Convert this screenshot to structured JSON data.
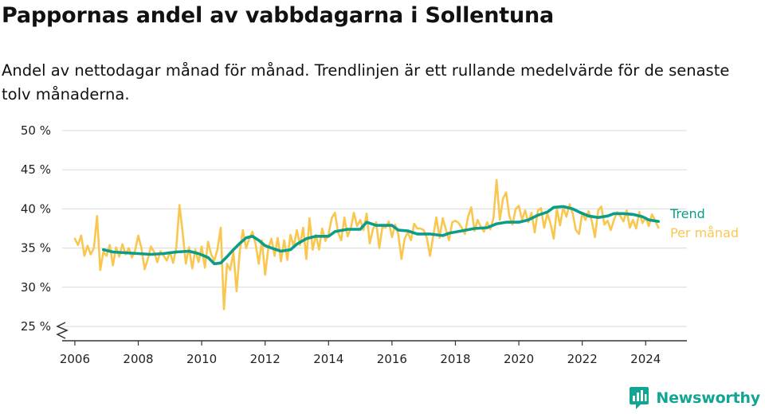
{
  "header": {
    "title": "Pappornas andel av vabbdagarna i Sollentuna",
    "subtitle": "Andel av nettodagar månad för månad. Trendlinjen är ett rullande medelvärde för de senaste tolv månaderna."
  },
  "brand": {
    "name": "Newsworthy",
    "icon": "newsworthy-logo-icon",
    "color": "#12a594"
  },
  "chart_data": {
    "type": "line",
    "title": "Pappornas andel av vabbdagarna i Sollentuna",
    "xlabel": "",
    "ylabel": "",
    "xlim": [
      2005.6,
      2025.3
    ],
    "ylim": [
      25,
      50
    ],
    "y_ticks": [
      25,
      30,
      35,
      40,
      45,
      50
    ],
    "y_tick_labels": [
      "25 %",
      "30 %",
      "35 %",
      "40 %",
      "45 %",
      "50 %"
    ],
    "x_ticks": [
      2006,
      2008,
      2010,
      2012,
      2014,
      2016,
      2018,
      2020,
      2022,
      2024
    ],
    "x_tick_labels": [
      "2006",
      "2008",
      "2010",
      "2012",
      "2014",
      "2016",
      "2018",
      "2020",
      "2022",
      "2024"
    ],
    "y_axis_break": true,
    "grid": "horizontal",
    "legend": "right, inline labels at line ends",
    "series": [
      {
        "name": "Trend",
        "color": "#0c9c8a",
        "points": [
          [
            2006.9,
            34.8
          ],
          [
            2007.2,
            34.5
          ],
          [
            2007.6,
            34.4
          ],
          [
            2008.0,
            34.3
          ],
          [
            2008.4,
            34.2
          ],
          [
            2008.8,
            34.3
          ],
          [
            2009.2,
            34.5
          ],
          [
            2009.6,
            34.6
          ],
          [
            2009.9,
            34.3
          ],
          [
            2010.2,
            33.8
          ],
          [
            2010.4,
            33.0
          ],
          [
            2010.6,
            33.1
          ],
          [
            2010.8,
            33.9
          ],
          [
            2011.0,
            34.8
          ],
          [
            2011.2,
            35.6
          ],
          [
            2011.4,
            36.3
          ],
          [
            2011.6,
            36.5
          ],
          [
            2011.8,
            36.0
          ],
          [
            2012.0,
            35.3
          ],
          [
            2012.2,
            35.0
          ],
          [
            2012.5,
            34.6
          ],
          [
            2012.8,
            34.8
          ],
          [
            2013.0,
            35.5
          ],
          [
            2013.3,
            36.2
          ],
          [
            2013.6,
            36.5
          ],
          [
            2014.0,
            36.5
          ],
          [
            2014.2,
            37.1
          ],
          [
            2014.6,
            37.4
          ],
          [
            2015.0,
            37.4
          ],
          [
            2015.2,
            38.3
          ],
          [
            2015.5,
            37.9
          ],
          [
            2016.0,
            37.9
          ],
          [
            2016.2,
            37.3
          ],
          [
            2016.5,
            37.2
          ],
          [
            2016.8,
            36.8
          ],
          [
            2017.2,
            36.8
          ],
          [
            2017.6,
            36.6
          ],
          [
            2017.8,
            36.9
          ],
          [
            2018.2,
            37.2
          ],
          [
            2018.6,
            37.5
          ],
          [
            2019.0,
            37.6
          ],
          [
            2019.3,
            38.1
          ],
          [
            2019.6,
            38.3
          ],
          [
            2020.0,
            38.3
          ],
          [
            2020.3,
            38.6
          ],
          [
            2020.6,
            39.2
          ],
          [
            2020.9,
            39.6
          ],
          [
            2021.1,
            40.2
          ],
          [
            2021.4,
            40.3
          ],
          [
            2021.7,
            40.0
          ],
          [
            2021.9,
            39.6
          ],
          [
            2022.2,
            39.1
          ],
          [
            2022.5,
            38.9
          ],
          [
            2022.8,
            39.1
          ],
          [
            2023.0,
            39.4
          ],
          [
            2023.3,
            39.4
          ],
          [
            2023.6,
            39.3
          ],
          [
            2023.9,
            39.0
          ],
          [
            2024.1,
            38.6
          ],
          [
            2024.4,
            38.4
          ]
        ]
      },
      {
        "name": "Per månad",
        "color": "#f9c74f",
        "points": [
          [
            2006.0,
            36.2
          ],
          [
            2006.1,
            35.4
          ],
          [
            2006.2,
            36.6
          ],
          [
            2006.3,
            34.0
          ],
          [
            2006.4,
            35.3
          ],
          [
            2006.5,
            34.2
          ],
          [
            2006.6,
            35.0
          ],
          [
            2006.7,
            39.1
          ],
          [
            2006.8,
            32.2
          ],
          [
            2006.9,
            34.5
          ],
          [
            2007.0,
            34.0
          ],
          [
            2007.1,
            35.4
          ],
          [
            2007.2,
            32.8
          ],
          [
            2007.3,
            35.1
          ],
          [
            2007.4,
            33.9
          ],
          [
            2007.5,
            35.5
          ],
          [
            2007.6,
            34.2
          ],
          [
            2007.7,
            35.0
          ],
          [
            2007.8,
            33.8
          ],
          [
            2007.9,
            34.7
          ],
          [
            2008.0,
            36.6
          ],
          [
            2008.1,
            35.0
          ],
          [
            2008.2,
            32.3
          ],
          [
            2008.3,
            33.6
          ],
          [
            2008.4,
            35.2
          ],
          [
            2008.5,
            34.5
          ],
          [
            2008.6,
            33.2
          ],
          [
            2008.7,
            34.6
          ],
          [
            2008.8,
            34.0
          ],
          [
            2008.9,
            33.4
          ],
          [
            2009.0,
            34.5
          ],
          [
            2009.1,
            33.1
          ],
          [
            2009.2,
            35.1
          ],
          [
            2009.3,
            40.5
          ],
          [
            2009.4,
            37.0
          ],
          [
            2009.5,
            33.0
          ],
          [
            2009.6,
            35.1
          ],
          [
            2009.7,
            32.4
          ],
          [
            2009.8,
            34.8
          ],
          [
            2009.9,
            33.2
          ],
          [
            2010.0,
            35.2
          ],
          [
            2010.1,
            32.5
          ],
          [
            2010.2,
            35.8
          ],
          [
            2010.3,
            34.2
          ],
          [
            2010.4,
            33.4
          ],
          [
            2010.5,
            34.9
          ],
          [
            2010.6,
            37.6
          ],
          [
            2010.7,
            27.2
          ],
          [
            2010.8,
            33.0
          ],
          [
            2010.9,
            32.2
          ],
          [
            2011.0,
            34.5
          ],
          [
            2011.1,
            29.5
          ],
          [
            2011.2,
            34.6
          ],
          [
            2011.3,
            37.3
          ],
          [
            2011.4,
            35.0
          ],
          [
            2011.5,
            36.2
          ],
          [
            2011.6,
            37.1
          ],
          [
            2011.7,
            35.5
          ],
          [
            2011.8,
            33.0
          ],
          [
            2011.9,
            36.0
          ],
          [
            2012.0,
            31.6
          ],
          [
            2012.1,
            35.0
          ],
          [
            2012.2,
            36.2
          ],
          [
            2012.3,
            34.0
          ],
          [
            2012.4,
            36.3
          ],
          [
            2012.5,
            33.3
          ],
          [
            2012.6,
            36.0
          ],
          [
            2012.7,
            33.5
          ],
          [
            2012.8,
            36.7
          ],
          [
            2012.9,
            35.2
          ],
          [
            2013.0,
            37.3
          ],
          [
            2013.1,
            35.4
          ],
          [
            2013.2,
            37.6
          ],
          [
            2013.3,
            33.6
          ],
          [
            2013.4,
            38.8
          ],
          [
            2013.5,
            34.8
          ],
          [
            2013.6,
            36.7
          ],
          [
            2013.7,
            34.8
          ],
          [
            2013.8,
            37.5
          ],
          [
            2013.9,
            35.9
          ],
          [
            2014.0,
            36.8
          ],
          [
            2014.1,
            38.8
          ],
          [
            2014.2,
            39.5
          ],
          [
            2014.3,
            37.0
          ],
          [
            2014.4,
            36.0
          ],
          [
            2014.5,
            38.9
          ],
          [
            2014.6,
            36.5
          ],
          [
            2014.7,
            37.5
          ],
          [
            2014.8,
            39.5
          ],
          [
            2014.9,
            37.8
          ],
          [
            2015.0,
            38.6
          ],
          [
            2015.1,
            37.3
          ],
          [
            2015.2,
            39.4
          ],
          [
            2015.3,
            35.6
          ],
          [
            2015.4,
            37.4
          ],
          [
            2015.5,
            38.3
          ],
          [
            2015.6,
            35.0
          ],
          [
            2015.7,
            37.7
          ],
          [
            2015.8,
            37.6
          ],
          [
            2015.9,
            38.4
          ],
          [
            2016.0,
            36.4
          ],
          [
            2016.1,
            38.0
          ],
          [
            2016.2,
            36.8
          ],
          [
            2016.3,
            33.6
          ],
          [
            2016.4,
            36.2
          ],
          [
            2016.5,
            37.0
          ],
          [
            2016.6,
            36.0
          ],
          [
            2016.7,
            38.1
          ],
          [
            2016.8,
            37.5
          ],
          [
            2016.9,
            37.5
          ],
          [
            2017.0,
            37.3
          ],
          [
            2017.1,
            36.3
          ],
          [
            2017.2,
            34.0
          ],
          [
            2017.3,
            36.5
          ],
          [
            2017.4,
            38.9
          ],
          [
            2017.5,
            36.3
          ],
          [
            2017.6,
            38.8
          ],
          [
            2017.7,
            37.4
          ],
          [
            2017.8,
            36.0
          ],
          [
            2017.9,
            38.3
          ],
          [
            2018.0,
            38.5
          ],
          [
            2018.1,
            38.2
          ],
          [
            2018.2,
            37.6
          ],
          [
            2018.3,
            36.8
          ],
          [
            2018.4,
            39.0
          ],
          [
            2018.5,
            40.2
          ],
          [
            2018.6,
            37.2
          ],
          [
            2018.7,
            38.6
          ],
          [
            2018.8,
            37.7
          ],
          [
            2018.9,
            37.1
          ],
          [
            2019.0,
            38.3
          ],
          [
            2019.1,
            37.4
          ],
          [
            2019.2,
            38.8
          ],
          [
            2019.3,
            43.7
          ],
          [
            2019.4,
            38.6
          ],
          [
            2019.5,
            41.3
          ],
          [
            2019.6,
            42.1
          ],
          [
            2019.7,
            39.1
          ],
          [
            2019.8,
            38.0
          ],
          [
            2019.9,
            40.0
          ],
          [
            2020.0,
            40.4
          ],
          [
            2020.1,
            38.6
          ],
          [
            2020.2,
            39.8
          ],
          [
            2020.3,
            38.3
          ],
          [
            2020.4,
            39.5
          ],
          [
            2020.5,
            37.0
          ],
          [
            2020.6,
            39.8
          ],
          [
            2020.7,
            40.1
          ],
          [
            2020.8,
            37.6
          ],
          [
            2020.9,
            39.4
          ],
          [
            2021.0,
            38.1
          ],
          [
            2021.1,
            36.2
          ],
          [
            2021.2,
            40.0
          ],
          [
            2021.3,
            37.9
          ],
          [
            2021.4,
            40.2
          ],
          [
            2021.5,
            39.0
          ],
          [
            2021.6,
            40.6
          ],
          [
            2021.7,
            39.4
          ],
          [
            2021.8,
            37.3
          ],
          [
            2021.9,
            36.8
          ],
          [
            2022.0,
            39.5
          ],
          [
            2022.1,
            38.6
          ],
          [
            2022.2,
            39.7
          ],
          [
            2022.3,
            38.5
          ],
          [
            2022.4,
            36.4
          ],
          [
            2022.5,
            39.8
          ],
          [
            2022.6,
            40.3
          ],
          [
            2022.7,
            38.0
          ],
          [
            2022.8,
            38.5
          ],
          [
            2022.9,
            37.3
          ],
          [
            2023.0,
            38.6
          ],
          [
            2023.1,
            39.6
          ],
          [
            2023.2,
            39.1
          ],
          [
            2023.3,
            38.4
          ],
          [
            2023.4,
            39.8
          ],
          [
            2023.5,
            37.6
          ],
          [
            2023.6,
            38.6
          ],
          [
            2023.7,
            37.5
          ],
          [
            2023.8,
            39.6
          ],
          [
            2023.9,
            38.2
          ],
          [
            2024.0,
            38.9
          ],
          [
            2024.1,
            37.8
          ],
          [
            2024.2,
            39.3
          ],
          [
            2024.3,
            38.5
          ],
          [
            2024.4,
            37.6
          ]
        ]
      }
    ]
  }
}
